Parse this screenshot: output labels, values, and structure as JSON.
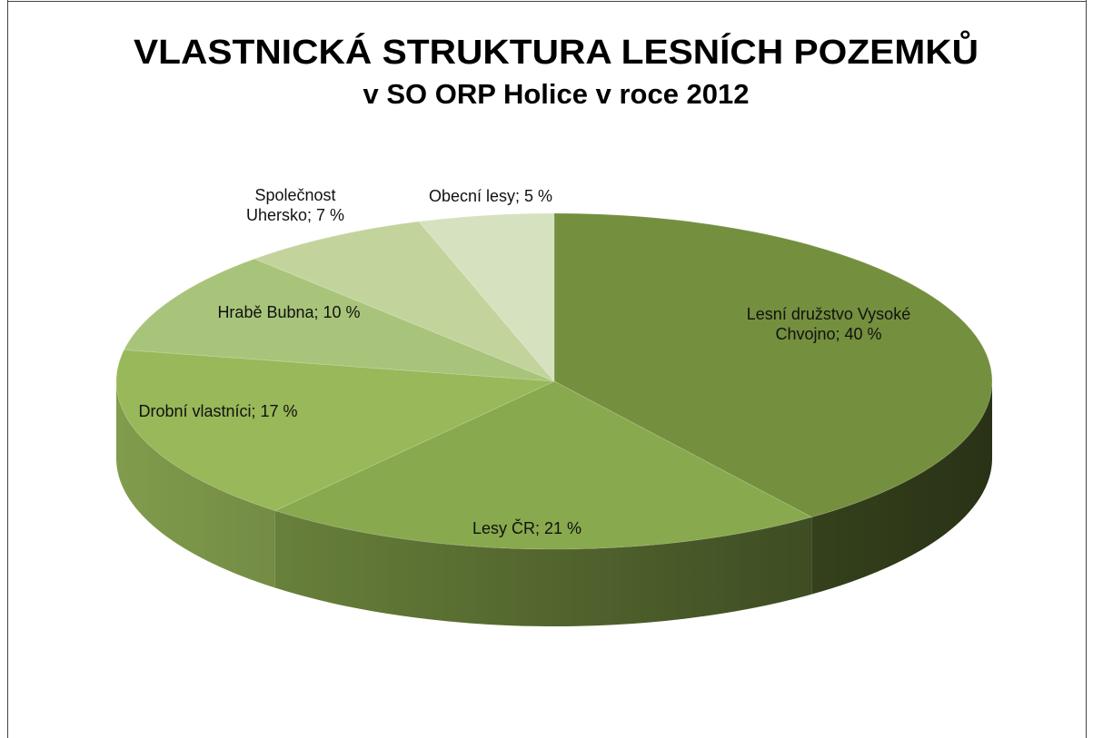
{
  "chart_data": {
    "type": "pie",
    "title": "VLASTNICKÁ STRUKTURA LESNÍCH POZEMKŮ",
    "subtitle": "v SO ORP Holice v roce 2012",
    "values": [
      40,
      21,
      17,
      10,
      7,
      5
    ],
    "value_labels": [
      "Lesní družstvo Vysoké Chvojno; 40 %",
      "Lesy ČR; 21 %",
      "Drobní vlastníci; 17 %",
      "Hrabě Bubna; 10 %",
      "Společnost Uhersko; 7 %",
      "Obecní lesy; 5 %"
    ],
    "colors": [
      "#748f3e",
      "#88a94d",
      "#98b859",
      "#a8c47a",
      "#c2d49c",
      "#d6e2bf"
    ]
  }
}
